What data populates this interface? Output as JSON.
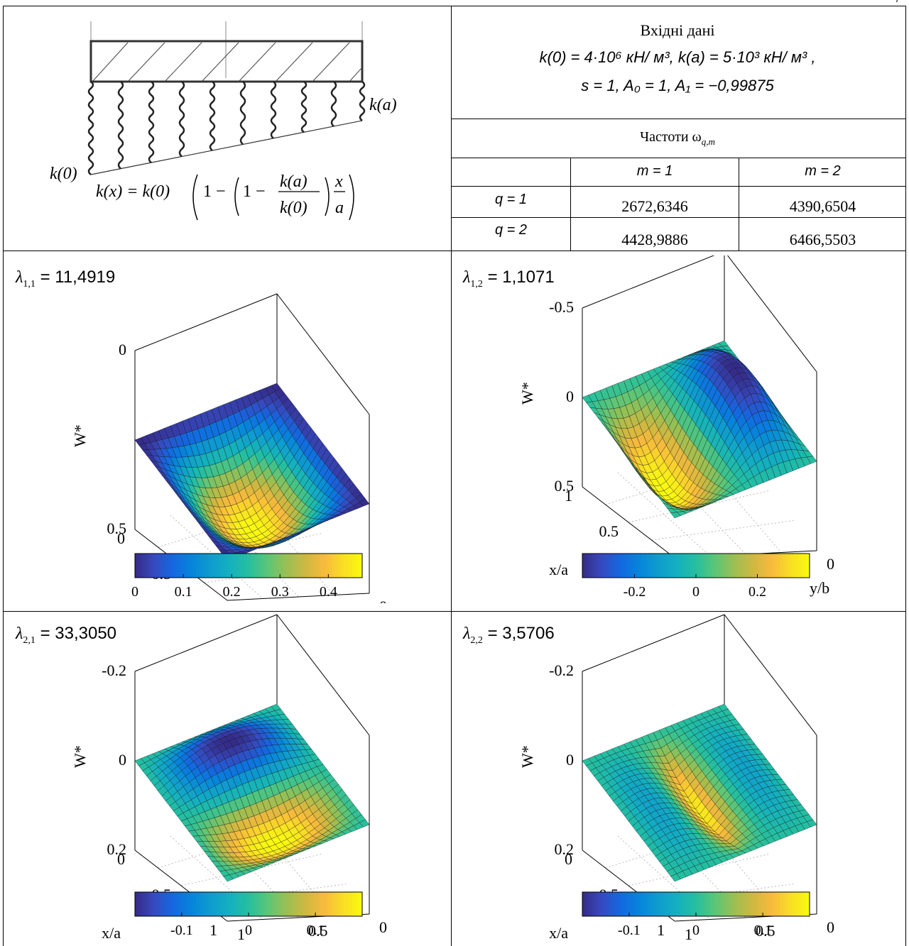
{
  "page_mark": "/",
  "scheme": {
    "k_a": "k(a)",
    "k_0": "k(0)",
    "formula_lhs": "k(x) = k(0)",
    "formula_one": "1 −",
    "formula_num": "k(a)",
    "formula_den": "k(0)",
    "formula_x": "x",
    "formula_a": "a"
  },
  "input": {
    "title": "Вхідні дані",
    "line1": "k(0) = 4·10⁶ кН/ м³,  k(a) = 5·10³ кН/ м³ ,",
    "line2": "s = 1,  A₀ = 1,  A₁ = −0,99875"
  },
  "freq": {
    "title": "Частоти ω",
    "title_sub": "q,m",
    "col_headers": [
      "m = 1",
      "m = 2"
    ],
    "rows": [
      {
        "label": "q = 1",
        "values": [
          "2672,6346",
          "4390,6504"
        ]
      },
      {
        "label": "q = 2",
        "values": [
          "4428,9886",
          "6466,5503"
        ]
      }
    ]
  },
  "panels": [
    {
      "id": "p11",
      "lam_sym": "λ",
      "lam_sub": "1,1",
      "lam_value": "= 11,4919",
      "wticks": [
        "0",
        "0.5"
      ],
      "xticks": [
        "0",
        "0.5",
        "1"
      ],
      "yticks": [
        "0",
        "0.5",
        "1"
      ],
      "cb_ticks": [
        "0",
        "0.1",
        "0.2",
        "0.3",
        "0.4"
      ],
      "cb_range": [
        0,
        0.47
      ]
    },
    {
      "id": "p12",
      "lam_sym": "λ",
      "lam_sub": "1,2",
      "lam_value": "= 1,1071",
      "wticks": [
        "-0.5",
        "0",
        "0.5"
      ],
      "xticks": [
        "1",
        "0.5",
        "0"
      ],
      "yticks": [
        "0",
        "0.5",
        "1"
      ],
      "cb_ticks": [
        "-0.2",
        "0",
        "0.2"
      ],
      "cb_range": [
        -0.37,
        0.37
      ]
    },
    {
      "id": "p21",
      "lam_sym": "λ",
      "lam_sub": "2,1",
      "lam_value": "= 33,3050",
      "wticks": [
        "-0.2",
        "0",
        "0.2"
      ],
      "xticks": [
        "0",
        "0.5",
        "1"
      ],
      "yticks": [
        "0",
        "0.5",
        "1"
      ],
      "cb_ticks": [
        "-0.1",
        "0",
        "0.1"
      ],
      "cb_range": [
        -0.17,
        0.17
      ]
    },
    {
      "id": "p22",
      "lam_sym": "λ",
      "lam_sub": "2,2",
      "lam_value": "= 3,5706",
      "wticks": [
        "-0.2",
        "0",
        "0.2"
      ],
      "xticks": [
        "0",
        "0.5",
        "1"
      ],
      "yticks": [
        "0",
        "0.5",
        "1"
      ],
      "cb_ticks": [
        "-0.1",
        "0",
        "0.1"
      ],
      "cb_range": [
        -0.17,
        0.17
      ]
    }
  ],
  "axis_labels": {
    "w": "W*",
    "x": "x/a",
    "y": "y/b"
  }
}
